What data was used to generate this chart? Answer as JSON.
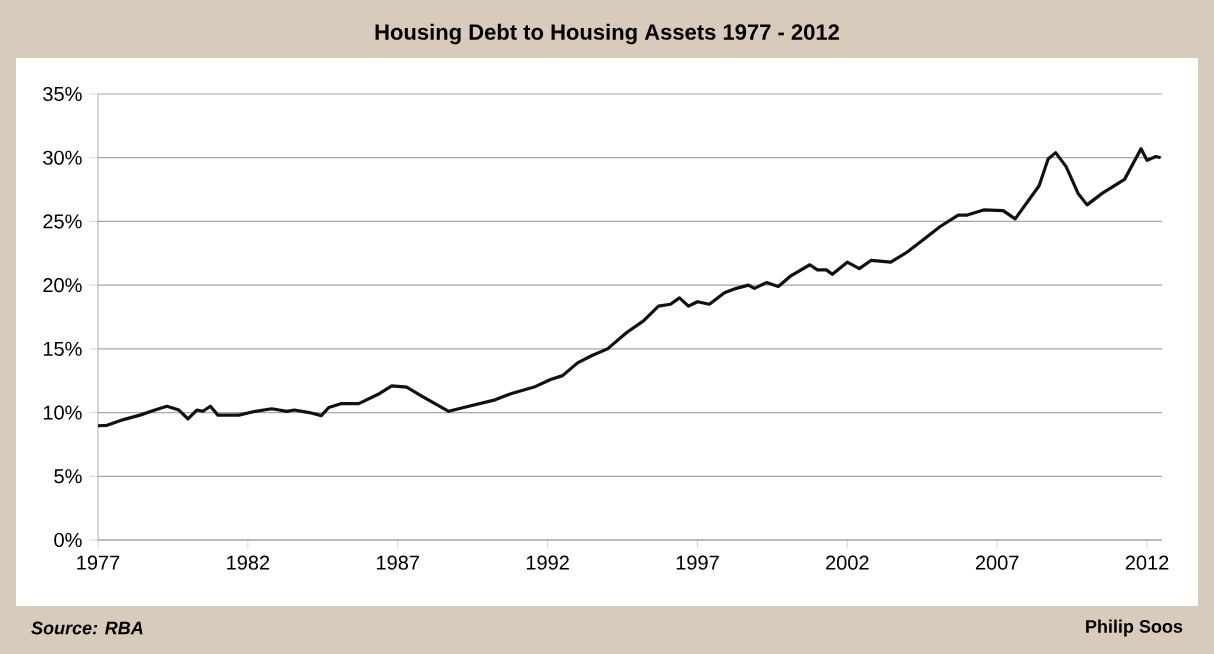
{
  "chart_data": {
    "type": "line",
    "title": "Housing Debt to Housing Assets 1977 - 2012",
    "annotations": [
      "Source: RBA",
      "Philip Soos"
    ],
    "x": [
      1977.0,
      1977.3,
      1977.85,
      1978.4,
      1978.9,
      1979.3,
      1979.7,
      1980.0,
      1980.3,
      1980.5,
      1980.75,
      1981.0,
      1981.7,
      1982.25,
      1982.8,
      1983.3,
      1983.55,
      1984.05,
      1984.45,
      1984.7,
      1985.1,
      1985.7,
      1986.4,
      1986.8,
      1987.3,
      1987.8,
      1988.7,
      1989.2,
      1990.25,
      1990.8,
      1991.55,
      1992.1,
      1992.5,
      1993.0,
      1993.5,
      1994.0,
      1994.65,
      1995.2,
      1995.7,
      1996.1,
      1996.4,
      1996.7,
      1997.0,
      1997.4,
      1997.9,
      1998.3,
      1998.7,
      1998.9,
      1999.3,
      1999.7,
      2000.1,
      2000.75,
      2001.0,
      2001.3,
      2001.5,
      2002.0,
      2002.4,
      2002.8,
      2003.45,
      2004.0,
      2004.5,
      2005.1,
      2005.7,
      2006.0,
      2006.55,
      2007.2,
      2007.6,
      2008.4,
      2008.7,
      2008.95,
      2009.3,
      2009.7,
      2010.0,
      2010.5,
      2011.25,
      2011.8,
      2012.0,
      2012.3,
      2012.45
    ],
    "series": [
      {
        "color": "#111111",
        "values": [
          8.96,
          9.0,
          9.45,
          9.8,
          10.2,
          10.5,
          10.2,
          9.5,
          10.2,
          10.1,
          10.5,
          9.8,
          9.8,
          10.1,
          10.3,
          10.1,
          10.2,
          10.0,
          9.76,
          10.4,
          10.7,
          10.7,
          11.5,
          12.1,
          12.0,
          11.3,
          10.1,
          10.4,
          11.0,
          11.5,
          12.0,
          12.6,
          12.9,
          13.9,
          14.5,
          15.0,
          16.3,
          17.2,
          18.35,
          18.5,
          19.0,
          18.35,
          18.7,
          18.5,
          19.4,
          19.75,
          20.0,
          19.75,
          20.2,
          19.9,
          20.7,
          21.6,
          21.2,
          21.2,
          20.85,
          21.8,
          21.3,
          21.95,
          21.8,
          22.6,
          23.5,
          24.6,
          25.5,
          25.5,
          25.9,
          25.85,
          25.2,
          27.8,
          29.9,
          30.4,
          29.3,
          27.2,
          26.3,
          27.2,
          28.3,
          30.7,
          29.8,
          30.1,
          30.0
        ]
      }
    ],
    "xlim": [
      1977,
      2012.5
    ],
    "ylim": [
      0,
      35
    ],
    "xticks": [
      1977,
      1982,
      1987,
      1992,
      1997,
      2002,
      2007,
      2012
    ],
    "yticks": [
      {
        "value": 0,
        "label": "0%"
      },
      {
        "value": 5,
        "label": "5%"
      },
      {
        "value": 10,
        "label": "10%"
      },
      {
        "value": 15,
        "label": "15%"
      },
      {
        "value": 20,
        "label": "20%"
      },
      {
        "value": 25,
        "label": "25%"
      },
      {
        "value": 30,
        "label": "30%"
      },
      {
        "value": 35,
        "label": "35%"
      }
    ],
    "grid": "y"
  }
}
